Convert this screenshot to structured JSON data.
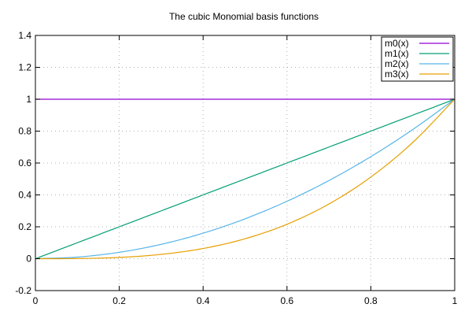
{
  "chart_data": {
    "type": "line",
    "title": "The cubic Monomial basis functions",
    "xlabel": "",
    "ylabel": "",
    "xlim": [
      0,
      1
    ],
    "ylim": [
      -0.2,
      1.4
    ],
    "x_ticks": [
      0,
      0.2,
      0.4,
      0.6,
      0.8,
      1
    ],
    "y_ticks": [
      -0.2,
      0,
      0.2,
      0.4,
      0.6,
      0.8,
      1,
      1.2,
      1.4
    ],
    "x_tick_labels": [
      "0",
      "0.2",
      "0.4",
      "0.6",
      "0.8",
      "1"
    ],
    "y_tick_labels": [
      "-0.2",
      "0",
      "0.2",
      "0.4",
      "0.6",
      "0.8",
      "1",
      "1.2",
      "1.4"
    ],
    "grid": true,
    "legend_position": "top-right",
    "x": [
      0,
      0.1,
      0.2,
      0.3,
      0.4,
      0.5,
      0.6,
      0.7,
      0.8,
      0.9,
      1.0
    ],
    "series": [
      {
        "name": "m0(x)",
        "color": "#9400d3",
        "values": [
          1,
          1,
          1,
          1,
          1,
          1,
          1,
          1,
          1,
          1,
          1
        ]
      },
      {
        "name": "m1(x)",
        "color": "#009e73",
        "values": [
          0,
          0.1,
          0.2,
          0.3,
          0.4,
          0.5,
          0.6,
          0.7,
          0.8,
          0.9,
          1.0
        ]
      },
      {
        "name": "m2(x)",
        "color": "#56b4e9",
        "values": [
          0,
          0.01,
          0.04,
          0.09,
          0.16,
          0.25,
          0.36,
          0.49,
          0.64,
          0.81,
          1.0
        ]
      },
      {
        "name": "m3(x)",
        "color": "#e69f00",
        "values": [
          0,
          0.001,
          0.008,
          0.027,
          0.064,
          0.125,
          0.216,
          0.343,
          0.512,
          0.729,
          1.0
        ]
      }
    ]
  }
}
